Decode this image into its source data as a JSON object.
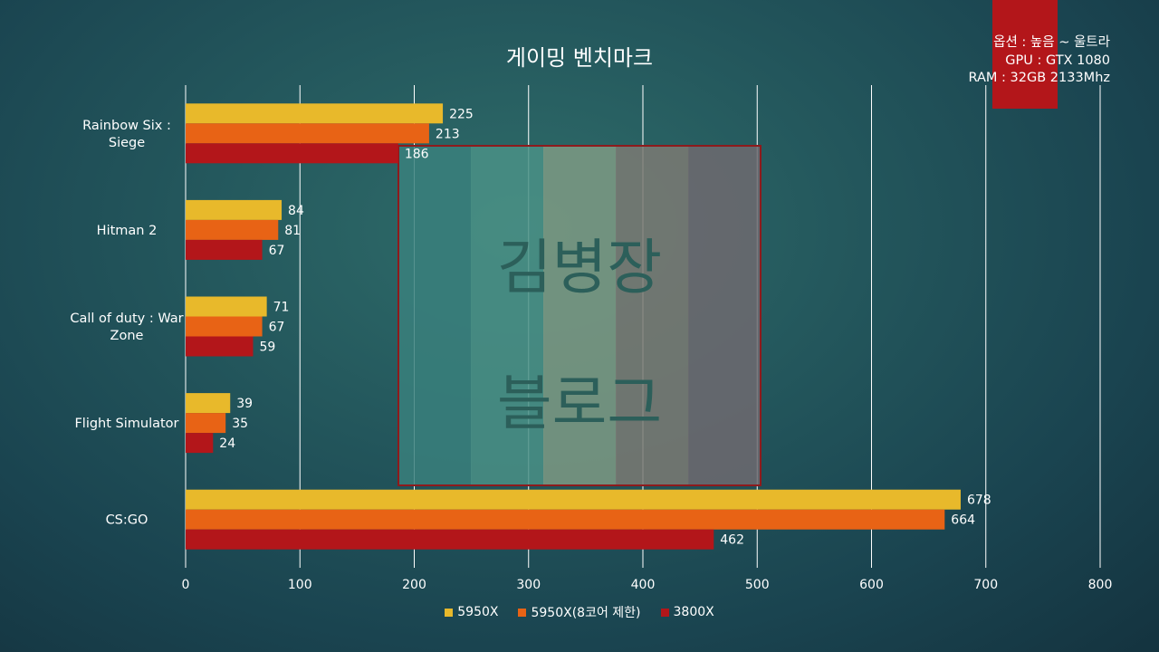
{
  "title": "게이밍 벤치마크",
  "options": {
    "line1": "옵션 : 높음 ~ 울트라",
    "line2": "GPU : GTX 1080",
    "line3": "RAM : 32GB 2133Mhz"
  },
  "watermark": {
    "line1": "김병장",
    "line2": "블로그"
  },
  "colors": {
    "accent_tab": "#b3161a",
    "watermark_stripes": [
      "#39807c",
      "#4a9186",
      "#7e9a84",
      "#7b7a73",
      "#6e6a70"
    ],
    "watermark_border": "#8e1a1c"
  },
  "chart_data": {
    "type": "bar",
    "orientation": "horizontal",
    "categories": [
      "Rainbow Six :\nSiege",
      "Hitman 2",
      "Call of duty : War\nZone",
      "Flight Simulator",
      "CS:GO"
    ],
    "series": [
      {
        "name": "5950X",
        "color": "#e8b92b",
        "values": [
          225,
          84,
          71,
          39,
          678
        ]
      },
      {
        "name": "5950X(8코어 제한)",
        "color": "#e86315",
        "values": [
          213,
          81,
          67,
          35,
          664
        ]
      },
      {
        "name": "3800X",
        "color": "#b3161a",
        "values": [
          186,
          67,
          59,
          24,
          462
        ]
      }
    ],
    "xlim": [
      0,
      800
    ],
    "xticks": [
      0,
      100,
      200,
      300,
      400,
      500,
      600,
      700,
      800
    ],
    "grid": true,
    "legend": "bottom"
  }
}
